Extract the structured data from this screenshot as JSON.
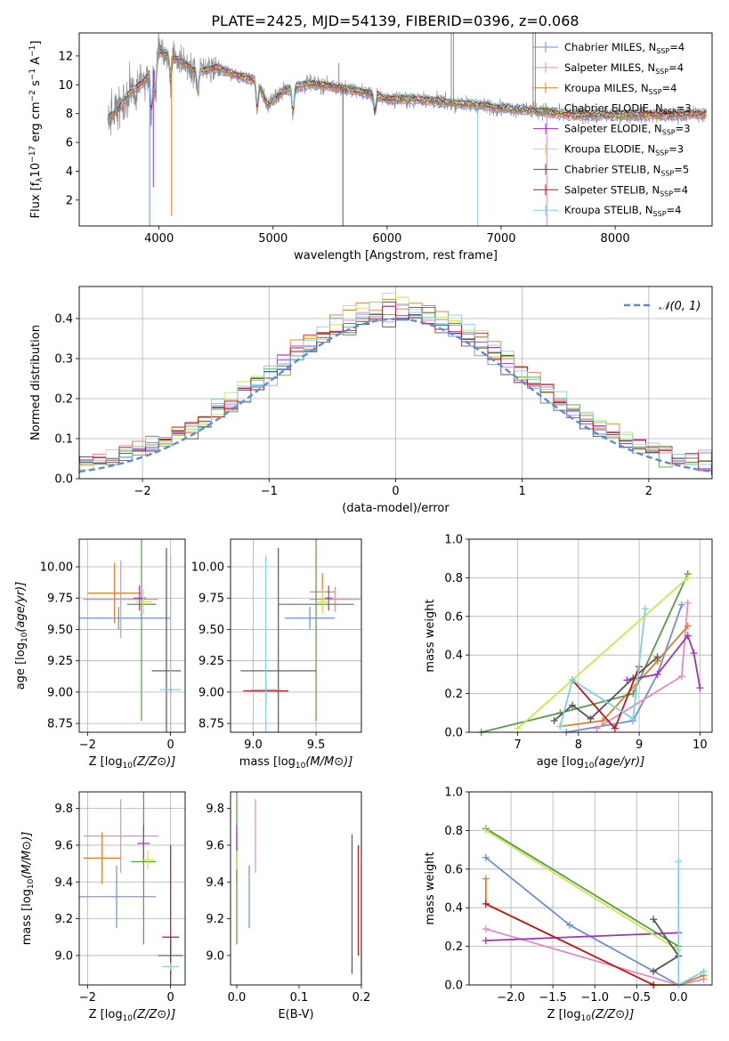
{
  "figure": {
    "title": "PLATE=2425, MJD=54139, FIBERID=0396, z=0.068"
  },
  "colors": {
    "chabrier_miles": "#6b8fd6",
    "salpeter_miles": "#e48ac0",
    "kroupa_miles": "#e07b2a",
    "chabrier_elodie": "#5a9a4a",
    "salpeter_elodie": "#9b35b8",
    "kroupa_elodie": "#c8ea4a",
    "chabrier_stelib": "#555555",
    "salpeter_stelib": "#c0181b",
    "kroupa_stelib": "#7fd0e0",
    "data_spectrum": "#8a8a8a",
    "normal_curve": "#5b8bd6"
  },
  "chart_data": [
    {
      "type": "line",
      "panel": "spectrum",
      "xlabel": "wavelength [Angstrom, rest frame]",
      "ylabel": "Flux [f",
      "xlim": [
        3300,
        8850
      ],
      "ylim": [
        0.2,
        13.6
      ],
      "xticks": [
        4000,
        5000,
        6000,
        7000,
        8000
      ],
      "yticks": [
        2,
        4,
        6,
        8,
        10,
        12
      ],
      "legend_position": "upper right",
      "legend": [
        {
          "name": "Chabrier MILES, N",
          "sub": "SSP",
          "tail": "=4",
          "color": "chabrier_miles"
        },
        {
          "name": "Salpeter MILES, N",
          "sub": "SSP",
          "tail": "=4",
          "color": "salpeter_miles"
        },
        {
          "name": "Kroupa MILES, N",
          "sub": "SSP",
          "tail": "=4",
          "color": "kroupa_miles"
        },
        {
          "name": "Chabrier ELODIE, N",
          "sub": "SSP",
          "tail": "=3",
          "color": "chabrier_elodie"
        },
        {
          "name": "Salpeter ELODIE, N",
          "sub": "SSP",
          "tail": "=3",
          "color": "salpeter_elodie"
        },
        {
          "name": "Kroupa ELODIE, N",
          "sub": "SSP",
          "tail": "=3",
          "color": "kroupa_elodie"
        },
        {
          "name": "Chabrier STELIB, N",
          "sub": "SSP",
          "tail": "=5",
          "color": "chabrier_stelib"
        },
        {
          "name": "Salpeter STELIB, N",
          "sub": "SSP",
          "tail": "=4",
          "color": "salpeter_stelib"
        },
        {
          "name": "Kroupa STELIB, N",
          "sub": "SSP",
          "tail": "=4",
          "color": "kroupa_stelib"
        }
      ],
      "continuum": [
        [
          3550,
          7.6
        ],
        [
          3650,
          8.4
        ],
        [
          3750,
          9.5
        ],
        [
          3850,
          10.1
        ],
        [
          3950,
          11.0
        ],
        [
          4000,
          12.3
        ],
        [
          4100,
          12.0
        ],
        [
          4200,
          11.6
        ],
        [
          4300,
          11.0
        ],
        [
          4400,
          11.0
        ],
        [
          4500,
          11.2
        ],
        [
          4700,
          10.6
        ],
        [
          4860,
          10.3
        ],
        [
          4950,
          8.6
        ],
        [
          5100,
          9.6
        ],
        [
          5300,
          10.1
        ],
        [
          5500,
          9.9
        ],
        [
          5800,
          9.5
        ],
        [
          6000,
          9.0
        ],
        [
          6300,
          9.0
        ],
        [
          6500,
          8.8
        ],
        [
          6800,
          8.6
        ],
        [
          7000,
          8.4
        ],
        [
          7300,
          8.2
        ],
        [
          7600,
          7.9
        ],
        [
          8000,
          7.9
        ],
        [
          8500,
          7.9
        ],
        [
          8800,
          8.0
        ]
      ],
      "absorption_features": [
        [
          3934,
          2.8
        ],
        [
          3968,
          2.2
        ],
        [
          4101,
          1.5
        ],
        [
          4340,
          1.5
        ],
        [
          4861,
          2.0
        ],
        [
          5175,
          1.8
        ],
        [
          5893,
          1.2
        ]
      ],
      "data_spikes": [
        [
          6563,
          13.6
        ],
        [
          6583,
          13.6
        ],
        [
          7280,
          13.6
        ],
        [
          7300,
          13.6
        ],
        [
          5577,
          11.5
        ]
      ],
      "model_dips": [
        [
          3918,
          0.2
        ],
        [
          4110,
          0.9
        ],
        [
          3950,
          2.9
        ],
        [
          5612,
          0.2
        ],
        [
          6795,
          0.2
        ],
        [
          7400,
          0.2
        ]
      ]
    },
    {
      "type": "step",
      "panel": "residual-distribution",
      "xlabel": "(data-model)/error",
      "ylabel": "Normed distribution",
      "xlim": [
        -2.5,
        2.5
      ],
      "ylim": [
        0,
        0.48
      ],
      "xticks": [
        -2,
        -1,
        0,
        1,
        2
      ],
      "yticks": [
        0.0,
        0.1,
        0.2,
        0.3,
        0.4
      ],
      "grid": true,
      "bins": 50,
      "curve_label": "𝒩(0, 1)",
      "legend_position": "upper right"
    },
    {
      "type": "scatter",
      "panel": "age-vs-Z",
      "xlabel": "Z [log",
      "ylabel": "age  [log",
      "xlim": [
        -2.2,
        0.35
      ],
      "ylim": [
        8.68,
        10.22
      ],
      "xticks": [
        -2,
        0
      ],
      "yticks": [
        8.75,
        9.0,
        9.25,
        9.5,
        9.75,
        10.0
      ],
      "grid": true,
      "points": [
        {
          "model": "chabrier_miles",
          "x": -1.25,
          "y": 9.59,
          "xerr": 1.25,
          "yerr": 0.09
        },
        {
          "model": "salpeter_miles",
          "x": -1.2,
          "y": 9.74,
          "xerr": 0.9,
          "yerr": 0.31
        },
        {
          "model": "kroupa_miles",
          "x": -1.35,
          "y": 9.79,
          "xerr": 0.65,
          "yerr": 0.24
        },
        {
          "model": "chabrier_elodie",
          "x": -0.7,
          "y": 9.7,
          "xerr": 0.35,
          "yerr": 0.93
        },
        {
          "model": "salpeter_elodie",
          "x": -0.75,
          "y": 9.75,
          "xerr": 0.15,
          "yerr": 0.1
        },
        {
          "model": "kroupa_elodie",
          "x": -0.65,
          "y": 9.72,
          "xerr": 0.2,
          "yerr": 0.1
        },
        {
          "model": "chabrier_stelib",
          "x": -0.1,
          "y": 9.17,
          "xerr": 0.35,
          "yerr": 0.98
        },
        {
          "model": "salpeter_stelib",
          "x": 0.0,
          "y": 9.02,
          "xerr": 0.05,
          "yerr": 0.02
        },
        {
          "model": "kroupa_stelib",
          "x": 0.0,
          "y": 9.02,
          "xerr": 0.25,
          "yerr": 1.07
        }
      ]
    },
    {
      "type": "scatter",
      "panel": "age-vs-mass",
      "xlabel": "mass [log",
      "ylabel": "",
      "xlim": [
        8.82,
        9.86
      ],
      "ylim": [
        8.68,
        10.22
      ],
      "xticks": [
        9.0,
        9.5
      ],
      "yticks": [
        8.75,
        9.0,
        9.25,
        9.5,
        9.75,
        10.0
      ],
      "grid": true,
      "points": [
        {
          "model": "chabrier_miles",
          "x": 9.45,
          "y": 9.59,
          "xerr": 0.2,
          "yerr": 0.09
        },
        {
          "model": "salpeter_miles",
          "x": 9.65,
          "y": 9.74,
          "xerr": 0.2,
          "yerr": 0.1
        },
        {
          "model": "kroupa_miles",
          "x": 9.55,
          "y": 9.8,
          "xerr": 0.1,
          "yerr": 0.15
        },
        {
          "model": "chabrier_elodie",
          "x": 9.5,
          "y": 9.7,
          "xerr": 0.3,
          "yerr": 0.93
        },
        {
          "model": "salpeter_elodie",
          "x": 9.6,
          "y": 9.75,
          "xerr": 0.03,
          "yerr": 0.1
        },
        {
          "model": "kroupa_elodie",
          "x": 9.55,
          "y": 9.72,
          "xerr": 0.05,
          "yerr": 0.1
        },
        {
          "model": "chabrier_stelib",
          "x": 9.2,
          "y": 9.17,
          "xerr": 0.3,
          "yerr": 0.98
        },
        {
          "model": "salpeter_stelib",
          "x": 9.1,
          "y": 9.01,
          "xerr": 0.18,
          "yerr": 0.1
        },
        {
          "model": "kroupa_stelib",
          "x": 9.1,
          "y": 9.02,
          "xerr": 0.12,
          "yerr": 1.07
        }
      ]
    },
    {
      "type": "line",
      "panel": "mass-weight-vs-age",
      "xlabel": "age  [log",
      "ylabel": "mass weight",
      "xlim": [
        6.2,
        10.2
      ],
      "ylim": [
        0.0,
        1.0
      ],
      "xticks": [
        7,
        8,
        9,
        10
      ],
      "yticks": [
        0.0,
        0.2,
        0.4,
        0.6,
        0.8,
        1.0
      ],
      "grid": true,
      "series": [
        {
          "model": "chabrier_miles",
          "points": [
            [
              7.8,
              0.0
            ],
            [
              8.9,
              0.06
            ],
            [
              9.3,
              0.3
            ],
            [
              9.7,
              0.66
            ]
          ]
        },
        {
          "model": "salpeter_miles",
          "points": [
            [
              8.3,
              0.02
            ],
            [
              9.7,
              0.29
            ],
            [
              9.8,
              0.67
            ]
          ]
        },
        {
          "model": "kroupa_miles",
          "points": [
            [
              7.7,
              0.03
            ],
            [
              8.4,
              0.06
            ],
            [
              9.3,
              0.37
            ],
            [
              9.8,
              0.55
            ]
          ]
        },
        {
          "model": "chabrier_elodie",
          "points": [
            [
              6.4,
              0.0
            ],
            [
              7.7,
              0.1
            ],
            [
              8.9,
              0.2
            ],
            [
              9.8,
              0.82
            ]
          ]
        },
        {
          "model": "salpeter_elodie",
          "points": [
            [
              8.8,
              0.27
            ],
            [
              9.3,
              0.3
            ],
            [
              9.8,
              0.5
            ],
            [
              9.9,
              0.41
            ],
            [
              10.0,
              0.23
            ]
          ]
        },
        {
          "model": "kroupa_elodie",
          "points": [
            [
              7.0,
              0.02
            ],
            [
              9.8,
              0.8
            ]
          ]
        },
        {
          "model": "chabrier_stelib",
          "points": [
            [
              7.6,
              0.06
            ],
            [
              7.9,
              0.14
            ],
            [
              8.2,
              0.07
            ],
            [
              8.9,
              0.28
            ],
            [
              9.3,
              0.39
            ]
          ]
        },
        {
          "model": "salpeter_stelib",
          "points": [
            [
              7.9,
              0.27
            ],
            [
              8.6,
              0.02
            ],
            [
              9.0,
              0.34
            ]
          ]
        },
        {
          "model": "kroupa_stelib",
          "points": [
            [
              7.7,
              0.03
            ],
            [
              7.9,
              0.27
            ],
            [
              8.9,
              0.07
            ],
            [
              9.1,
              0.64
            ]
          ]
        }
      ]
    },
    {
      "type": "scatter",
      "panel": "mass-vs-Z",
      "xlabel": "Z [log",
      "ylabel": "mass [log",
      "xlim": [
        -2.2,
        0.35
      ],
      "ylim": [
        8.84,
        9.89
      ],
      "xticks": [
        -2,
        0
      ],
      "yticks": [
        9.0,
        9.2,
        9.4,
        9.6,
        9.8
      ],
      "grid": true,
      "points": [
        {
          "model": "chabrier_miles",
          "x": -1.3,
          "y": 9.32,
          "xerr": 0.95,
          "yerr": 0.17
        },
        {
          "model": "salpeter_miles",
          "x": -1.2,
          "y": 9.65,
          "xerr": 0.9,
          "yerr": 0.2
        },
        {
          "model": "kroupa_miles",
          "x": -1.65,
          "y": 9.53,
          "xerr": 0.45,
          "yerr": 0.14
        },
        {
          "model": "chabrier_elodie",
          "x": -0.65,
          "y": 9.51,
          "xerr": 0.3,
          "yerr": 0.45
        },
        {
          "model": "salpeter_elodie",
          "x": -0.65,
          "y": 9.61,
          "xerr": 0.15,
          "yerr": 0.1
        },
        {
          "model": "kroupa_elodie",
          "x": -0.55,
          "y": 9.52,
          "xerr": 0.15,
          "yerr": 0.05
        },
        {
          "model": "chabrier_stelib",
          "x": 0.0,
          "y": 9.0,
          "xerr": 0.3,
          "yerr": 0.1
        },
        {
          "model": "salpeter_stelib",
          "x": 0.0,
          "y": 9.1,
          "xerr": 0.2,
          "yerr": 0.5
        },
        {
          "model": "kroupa_stelib",
          "x": 0.0,
          "y": 8.94,
          "xerr": 0.2,
          "yerr": 0.02
        }
      ]
    },
    {
      "type": "scatter",
      "panel": "mass-vs-EBV",
      "xlabel": "E(B-V)",
      "ylabel": "",
      "xlim": [
        -0.01,
        0.2
      ],
      "ylim": [
        8.84,
        9.89
      ],
      "xticks": [
        0.0,
        0.1,
        0.2
      ],
      "yticks": [
        9.0,
        9.2,
        9.4,
        9.6,
        9.8
      ],
      "grid": false,
      "points": [
        {
          "model": "chabrier_miles",
          "x": 0.02,
          "y": 9.32,
          "xerr": 0.0,
          "yerr": 0.17
        },
        {
          "model": "salpeter_miles",
          "x": 0.03,
          "y": 9.65,
          "xerr": 0.0,
          "yerr": 0.2
        },
        {
          "model": "kroupa_miles",
          "x": 0.0,
          "y": 9.53,
          "xerr": 0.0,
          "yerr": 0.14
        },
        {
          "model": "chabrier_elodie",
          "x": 0.0,
          "y": 9.51,
          "xerr": 0.0,
          "yerr": 0.45
        },
        {
          "model": "salpeter_elodie",
          "x": 0.0,
          "y": 9.61,
          "xerr": 0.0,
          "yerr": 0.1
        },
        {
          "model": "kroupa_elodie",
          "x": 0.0,
          "y": 9.52,
          "xerr": 0.0,
          "yerr": 0.05
        },
        {
          "model": "chabrier_stelib",
          "x": 0.185,
          "y": 9.28,
          "xerr": 0.0,
          "yerr": 0.38
        },
        {
          "model": "salpeter_stelib",
          "x": 0.195,
          "y": 9.3,
          "xerr": 0.0,
          "yerr": 0.3
        },
        {
          "model": "kroupa_stelib",
          "x": 0.2,
          "y": 9.2,
          "xerr": 0.0,
          "yerr": 0.3
        }
      ]
    },
    {
      "type": "line",
      "panel": "mass-weight-vs-Z",
      "xlabel": "Z [log",
      "ylabel": "mass weight",
      "xlim": [
        -2.5,
        0.4
      ],
      "ylim": [
        0.0,
        1.0
      ],
      "xticks": [
        -2.0,
        -1.5,
        -1.0,
        -0.5,
        0.0
      ],
      "yticks": [
        0.0,
        0.2,
        0.4,
        0.6,
        0.8,
        1.0
      ],
      "grid": true,
      "series": [
        {
          "model": "chabrier_miles",
          "points": [
            [
              -2.3,
              0.66
            ],
            [
              -1.3,
              0.31
            ],
            [
              0.0,
              0.0
            ]
          ]
        },
        {
          "model": "salpeter_miles",
          "points": [
            [
              -2.3,
              0.29
            ],
            [
              0.0,
              0.0
            ],
            [
              0.3,
              0.03
            ]
          ]
        },
        {
          "model": "kroupa_miles",
          "points": [
            [
              -2.3,
              0.55
            ],
            [
              -2.3,
              0.42
            ],
            [
              -0.3,
              0.0
            ],
            [
              0.0,
              0.0
            ],
            [
              0.3,
              0.05
            ]
          ]
        },
        {
          "model": "chabrier_elodie",
          "points": [
            [
              -2.3,
              0.81
            ],
            [
              0.0,
              0.2
            ]
          ]
        },
        {
          "model": "salpeter_elodie",
          "points": [
            [
              -2.3,
              0.23
            ],
            [
              0.0,
              0.27
            ]
          ]
        },
        {
          "model": "kroupa_elodie",
          "points": [
            [
              -2.3,
              0.8
            ],
            [
              0.0,
              0.18
            ]
          ]
        },
        {
          "model": "chabrier_stelib",
          "points": [
            [
              -0.3,
              0.34
            ],
            [
              0.0,
              0.15
            ],
            [
              -0.3,
              0.07
            ]
          ]
        },
        {
          "model": "salpeter_stelib",
          "points": [
            [
              -2.3,
              0.42
            ],
            [
              -0.3,
              0.0
            ]
          ]
        },
        {
          "model": "kroupa_stelib",
          "points": [
            [
              0.0,
              0.64
            ],
            [
              0.0,
              0.0
            ],
            [
              0.3,
              0.07
            ]
          ]
        }
      ]
    }
  ]
}
